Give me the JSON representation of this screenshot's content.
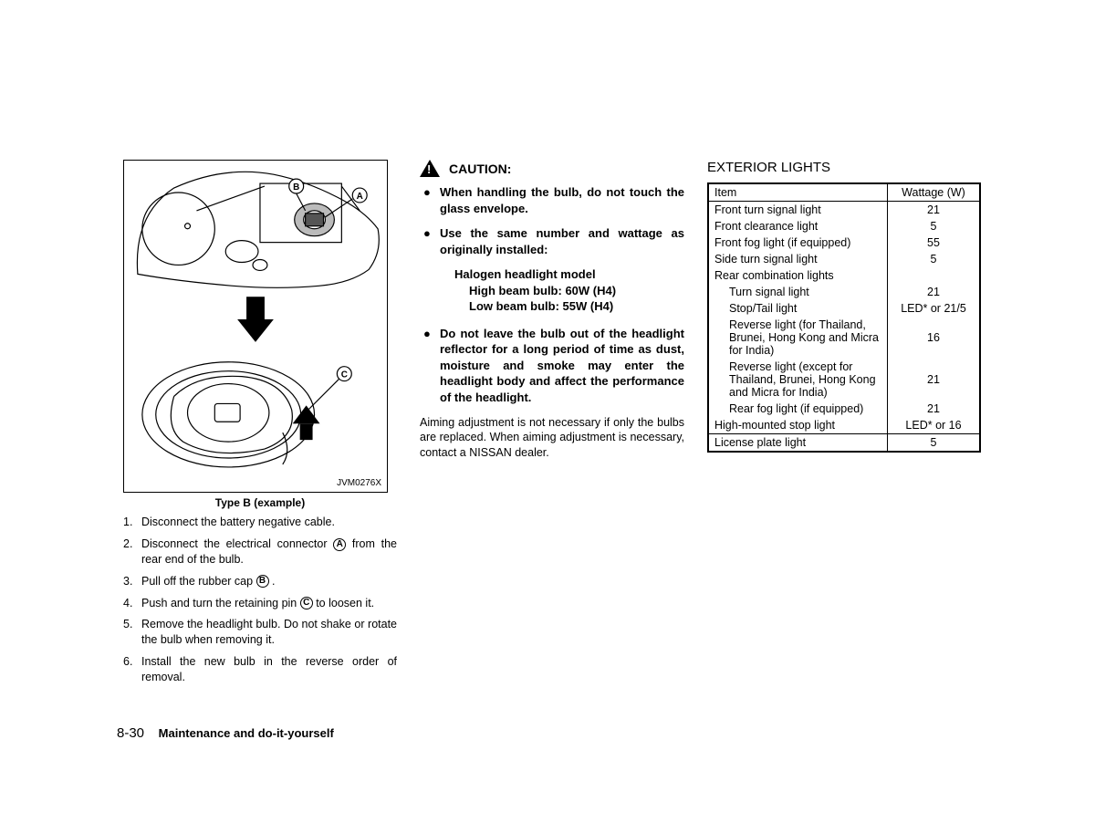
{
  "diagram": {
    "id": "JVM0276X",
    "caption": "Type B (example)",
    "labels": {
      "a": "A",
      "b": "B",
      "c": "C"
    }
  },
  "steps": [
    {
      "n": "1.",
      "text_pre": "Disconnect the battery negative cable.",
      "label": null,
      "text_post": ""
    },
    {
      "n": "2.",
      "text_pre": "Disconnect the electrical connector ",
      "label": "A",
      "text_post": " from the rear end of the bulb."
    },
    {
      "n": "3.",
      "text_pre": "Pull off the rubber cap ",
      "label": "B",
      "text_post": " ."
    },
    {
      "n": "4.",
      "text_pre": "Push and turn the retaining pin ",
      "label": "C",
      "text_post": " to loosen it."
    },
    {
      "n": "5.",
      "text_pre": "Remove the headlight bulb. Do not shake or rotate the bulb when removing it.",
      "label": null,
      "text_post": ""
    },
    {
      "n": "6.",
      "text_pre": "Install the new bulb in the reverse order of removal.",
      "label": null,
      "text_post": ""
    }
  ],
  "caution": {
    "title": "CAUTION:",
    "items": [
      "When handling the bulb, do not touch the glass envelope.",
      "Use the same number and wattage as originally installed:"
    ],
    "subblock": {
      "heading": "Halogen headlight model",
      "lines": [
        "High beam bulb: 60W (H4)",
        "Low beam bulb: 55W (H4)"
      ]
    },
    "items2": [
      "Do not leave the bulb out of the headlight reflector for a long period of time as dust, moisture and smoke may enter the headlight body and affect the performance of the headlight."
    ],
    "aiming": "Aiming adjustment is not necessary if only the bulbs are replaced. When aiming adjustment is necessary, contact a NISSAN dealer."
  },
  "exterior": {
    "title": "EXTERIOR LIGHTS",
    "headers": {
      "item": "Item",
      "watt": "Wattage (W)"
    },
    "rows": [
      {
        "item": "Front turn signal light",
        "watt": "21",
        "indent": false
      },
      {
        "item": "Front clearance light",
        "watt": "5",
        "indent": false
      },
      {
        "item": "Front fog light (if equipped)",
        "watt": "55",
        "indent": false
      },
      {
        "item": "Side turn signal light",
        "watt": "5",
        "indent": false
      },
      {
        "item": "Rear combination lights",
        "watt": "",
        "indent": false
      },
      {
        "item": "Turn signal light",
        "watt": "21",
        "indent": true
      },
      {
        "item": "Stop/Tail light",
        "watt": "LED* or 21/5",
        "indent": true
      },
      {
        "item": "Reverse light (for Thailand, Brunei, Hong Kong and Micra for India)",
        "watt": "16",
        "indent": true
      },
      {
        "item": "Reverse light (except for Thailand, Brunei, Hong Kong and Micra for India)",
        "watt": "21",
        "indent": true
      },
      {
        "item": "Rear fog light (if equipped)",
        "watt": "21",
        "indent": true
      },
      {
        "item": "High-mounted stop light",
        "watt": "LED* or 16",
        "indent": false
      }
    ],
    "last_row": {
      "item": "License plate light",
      "watt": "5"
    }
  },
  "footer": {
    "page": "8-30",
    "text": "Maintenance and do-it-yourself"
  }
}
